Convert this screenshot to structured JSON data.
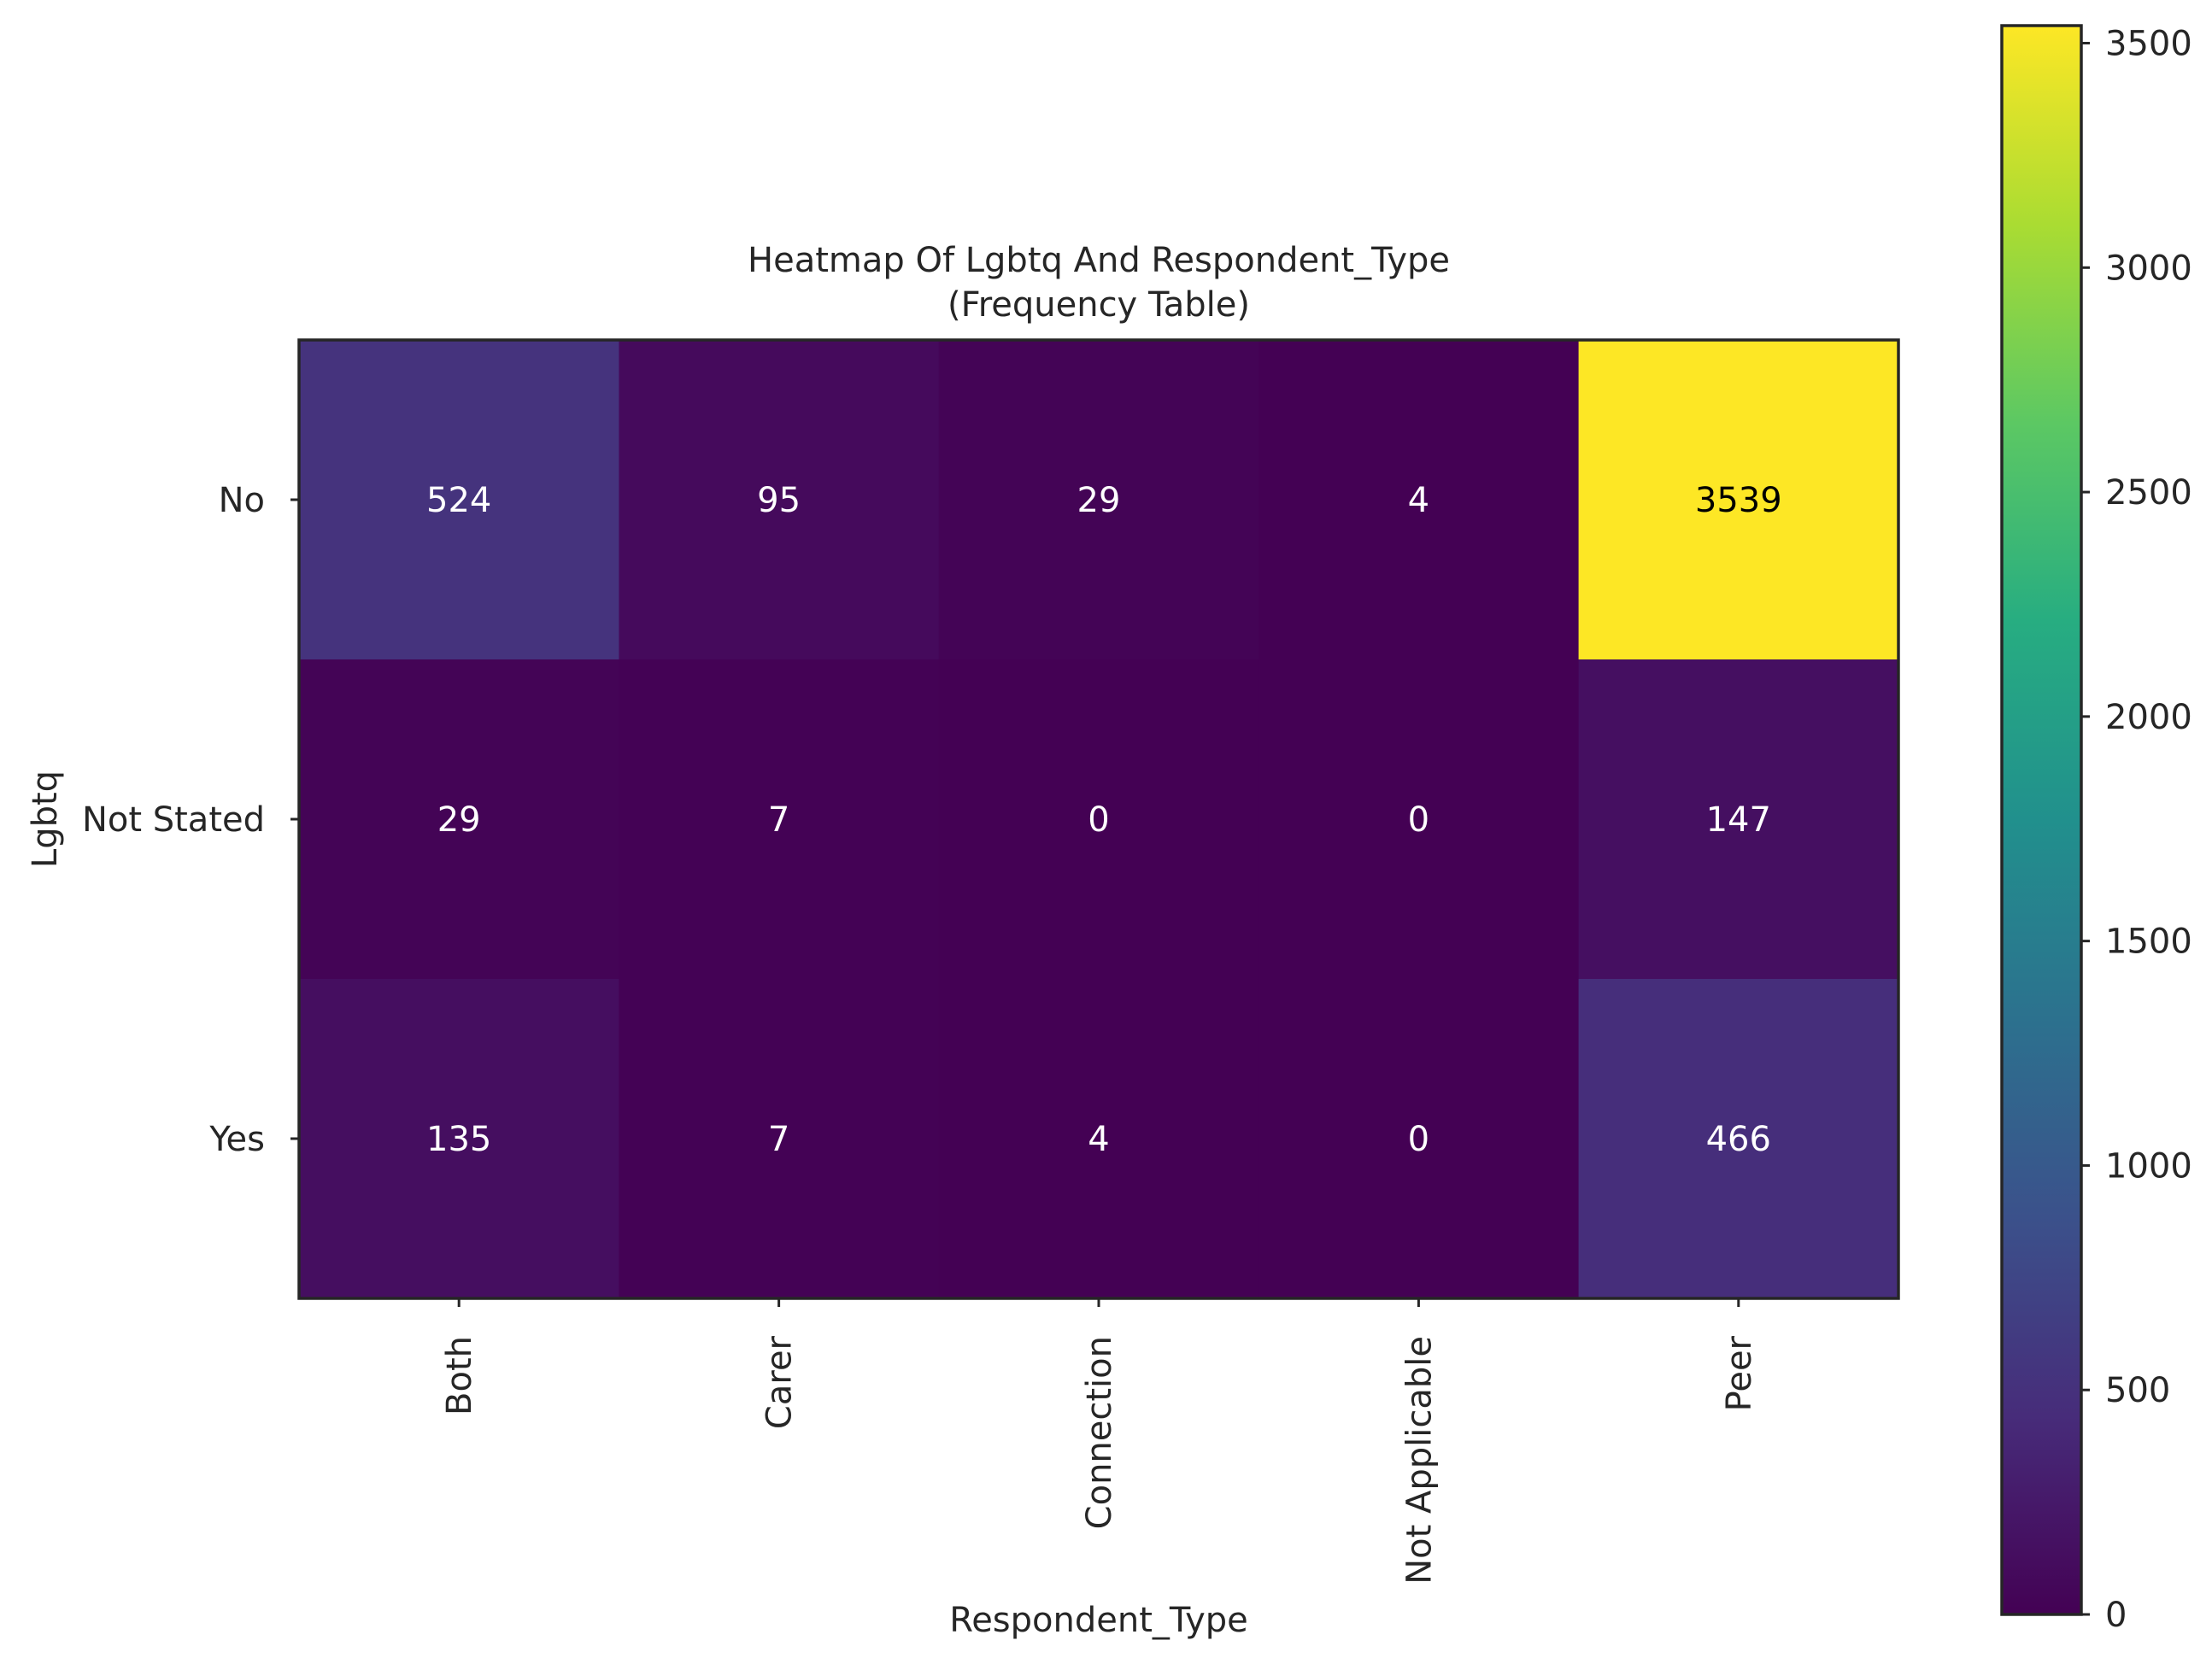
{
  "chart_data": {
    "type": "heatmap",
    "title": "Heatmap Of Lgbtq And Respondent_Type",
    "subtitle": "(Frequency Table)",
    "xlabel": "Respondent_Type",
    "ylabel": "Lgbtq",
    "x_categories": [
      "Both",
      "Carer",
      "Connection",
      "Not Applicable",
      "Peer"
    ],
    "y_categories": [
      "No",
      "Not Stated",
      "Yes"
    ],
    "values": [
      [
        524,
        95,
        29,
        4,
        3539
      ],
      [
        29,
        7,
        0,
        0,
        147
      ],
      [
        135,
        7,
        4,
        0,
        466
      ]
    ],
    "colorscale": "viridis",
    "colorbar": {
      "min": 0,
      "max": 3539,
      "ticks": [
        0,
        500,
        1000,
        1500,
        2000,
        2500,
        3000,
        3500
      ]
    },
    "grid": false
  }
}
